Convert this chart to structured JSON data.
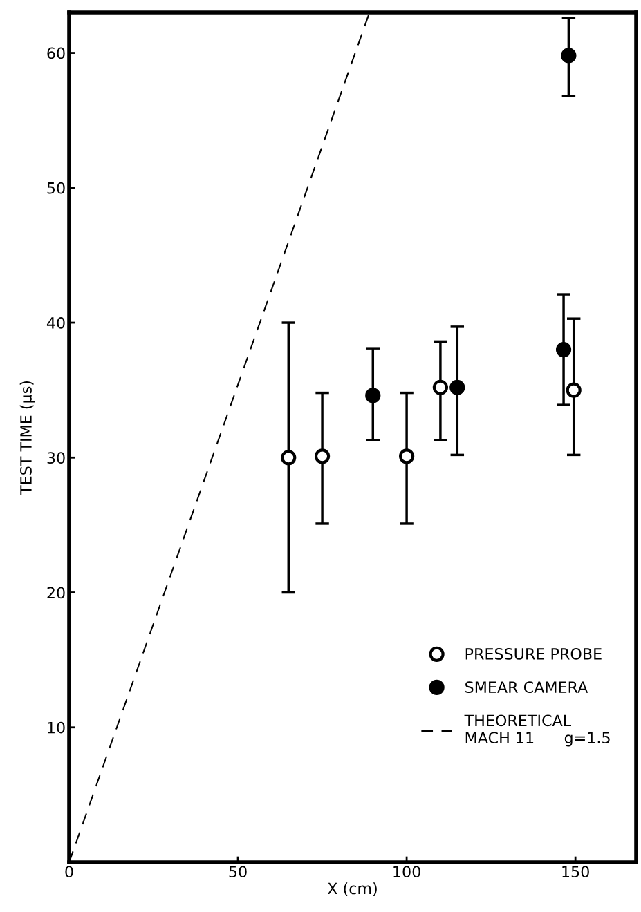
{
  "chart_data": {
    "type": "scatter",
    "xlabel": "X (cm)",
    "ylabel": "TEST TIME (μs)",
    "xlim": [
      0,
      168
    ],
    "ylim": [
      0,
      63
    ],
    "xticks": [
      0,
      50,
      100,
      150
    ],
    "yticks": [
      10,
      20,
      30,
      40,
      50,
      60
    ],
    "grid": false,
    "legend": "bottom right",
    "series": [
      {
        "name": "PRESSURE PROBE",
        "marker": "circle",
        "color": "#ffffff",
        "x": [
          65,
          75,
          100,
          110,
          149.5
        ],
        "values": [
          30,
          30.1,
          30.1,
          35.2,
          35
        ],
        "errors": [
          [
            20,
            40
          ],
          [
            25.1,
            34.8
          ],
          [
            25.1,
            34.8
          ],
          [
            31.3,
            38.6
          ],
          [
            30.2,
            40.3
          ]
        ]
      },
      {
        "name": "SMEAR CAMERA",
        "marker": "circle",
        "color": "#000000",
        "x": [
          90,
          115,
          146.5,
          148
        ],
        "values": [
          34.6,
          35.2,
          38,
          59.8
        ],
        "errors": [
          [
            31.3,
            38.1
          ],
          [
            30.2,
            39.7
          ],
          [
            33.9,
            42.1
          ],
          [
            56.8,
            62.6
          ]
        ]
      },
      {
        "name": "THEORETICAL\nMACH 11      g=1.5",
        "type": "line",
        "line_style": "dashed",
        "marker": "none",
        "color": "#000000",
        "x": [
          0,
          89
        ],
        "values": [
          0,
          63
        ]
      }
    ]
  }
}
